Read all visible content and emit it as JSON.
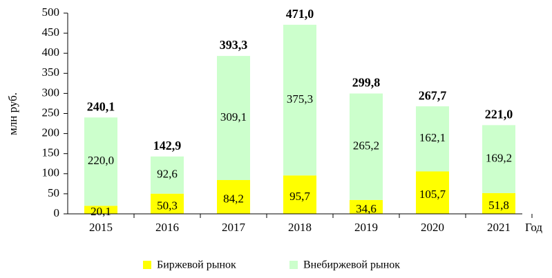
{
  "chart_data": {
    "type": "stacked_bar",
    "ylabel": "млн руб.",
    "xlabel": "Год",
    "categories": [
      "2015",
      "2016",
      "2017",
      "2018",
      "2019",
      "2020",
      "2021"
    ],
    "series": [
      {
        "name": "Биржевой рынок",
        "color": "#ffff00",
        "values": [
          20.1,
          50.3,
          84.2,
          95.7,
          34.6,
          105.7,
          51.8
        ],
        "value_labels": [
          "20,1",
          "50,3",
          "84,2",
          "95,7",
          "34,6",
          "105,7",
          "51,8"
        ]
      },
      {
        "name": "Внебиржевой рынок",
        "color": "#ccffcc",
        "values": [
          220.0,
          92.6,
          309.1,
          375.3,
          265.2,
          162.1,
          169.2
        ],
        "value_labels": [
          "220,0",
          "92,6",
          "309,1",
          "375,3",
          "265,2",
          "162,1",
          "169,2"
        ]
      }
    ],
    "totals": [
      240.1,
      142.9,
      393.3,
      471.0,
      299.8,
      267.7,
      221.0
    ],
    "total_labels": [
      "240,1",
      "142,9",
      "393,3",
      "471,0",
      "299,8",
      "267,7",
      "221,0"
    ],
    "ylim": [
      0,
      500
    ],
    "yticks": [
      0,
      50,
      100,
      150,
      200,
      250,
      300,
      350,
      400,
      450,
      500
    ],
    "legend": "bottom"
  }
}
